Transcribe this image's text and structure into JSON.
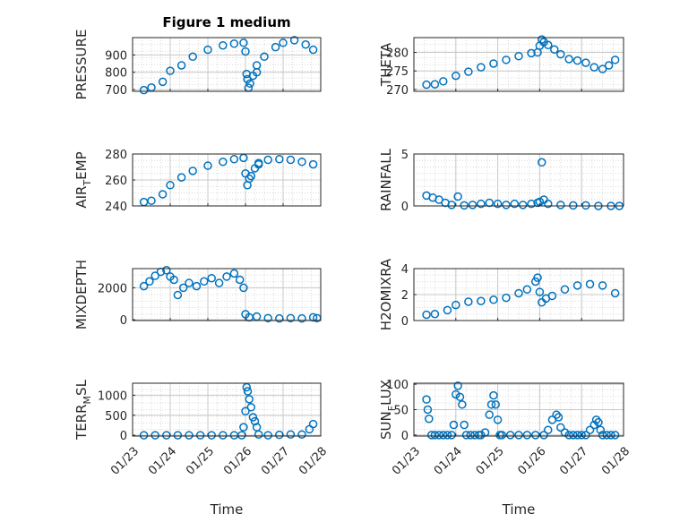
{
  "chart_data": [
    {
      "type": "scatter",
      "id": "pressure",
      "title": "Figure 1 medium",
      "ylabel": "PRESSURE",
      "ylabel_sub": "",
      "ylabel_tail": "",
      "ylim": [
        690,
        1000
      ],
      "yticks": [
        700,
        800,
        900
      ],
      "ytick_labels": [
        "700",
        "800",
        "900"
      ],
      "xlim": [
        0,
        5
      ],
      "xlabel": "",
      "xtick_labels": [],
      "segments": [
        {
          "x": [
            0.3,
            0.5,
            0.8,
            1.0,
            1.3,
            1.6,
            2.0,
            2.4,
            2.7,
            2.95
          ],
          "y": [
            697,
            712,
            745,
            808,
            840,
            890,
            930,
            955,
            965,
            970
          ]
        },
        {
          "x": [
            3.0,
            3.03,
            3.05,
            3.08,
            3.12,
            3.2,
            3.3
          ],
          "y": [
            920,
            790,
            760,
            710,
            735,
            780,
            800
          ]
        },
        {
          "x": [
            3.3,
            3.5,
            3.8,
            4.0,
            4.3,
            4.6,
            4.8
          ],
          "y": [
            840,
            890,
            945,
            970,
            985,
            960,
            930
          ]
        }
      ]
    },
    {
      "type": "scatter",
      "id": "theta",
      "title": "",
      "ylabel": "THETA",
      "ylabel_sub": "",
      "ylabel_tail": "",
      "ylim": [
        269.5,
        284
      ],
      "yticks": [
        270,
        275,
        280
      ],
      "ytick_labels": [
        "270",
        "275",
        "280"
      ],
      "xlim": [
        0,
        5
      ],
      "xlabel": "",
      "xtick_labels": [],
      "segments": [
        {
          "x": [
            0.3,
            0.5,
            0.7,
            1.0,
            1.3,
            1.6,
            1.9,
            2.2,
            2.5,
            2.8,
            2.95
          ],
          "y": [
            271.3,
            271.4,
            272.2,
            273.7,
            274.8,
            276.0,
            277.0,
            278.0,
            279.0,
            279.8,
            280.0
          ]
        },
        {
          "x": [
            3.0,
            3.05,
            3.1,
            3.2,
            3.35,
            3.5,
            3.7,
            3.9,
            4.1,
            4.3,
            4.5,
            4.65,
            4.8
          ],
          "y": [
            281.8,
            283.5,
            282.8,
            282.0,
            280.8,
            279.5,
            278.2,
            277.8,
            277.2,
            276.0,
            275.5,
            276.5,
            278.0
          ]
        }
      ]
    },
    {
      "type": "scatter",
      "id": "air-temp",
      "title": "",
      "ylabel": "AIR",
      "ylabel_sub": "T",
      "ylabel_tail": "EMP",
      "ylim": [
        240,
        280
      ],
      "yticks": [
        240,
        260,
        280
      ],
      "ytick_labels": [
        "240",
        "260",
        "280"
      ],
      "xlim": [
        0,
        5
      ],
      "xlabel": "",
      "xtick_labels": [],
      "segments": [
        {
          "x": [
            0.3,
            0.5,
            0.8,
            1.0,
            1.3,
            1.6,
            2.0,
            2.4,
            2.7,
            2.95
          ],
          "y": [
            243,
            244,
            249,
            256,
            262,
            267,
            271,
            274,
            276,
            277
          ]
        },
        {
          "x": [
            3.0,
            3.05,
            3.1,
            3.15,
            3.25,
            3.35
          ],
          "y": [
            265,
            256,
            261,
            263,
            269,
            272
          ]
        },
        {
          "x": [
            3.35,
            3.6,
            3.9,
            4.2,
            4.5,
            4.8
          ],
          "y": [
            273,
            275.5,
            276,
            275.5,
            274,
            272
          ]
        }
      ]
    },
    {
      "type": "scatter",
      "id": "rainfall",
      "title": "",
      "ylabel": "RAINFALL",
      "ylabel_sub": "",
      "ylabel_tail": "",
      "ylim": [
        0,
        5
      ],
      "yticks": [
        0,
        5
      ],
      "ytick_labels": [
        "0",
        "5"
      ],
      "xlim": [
        0,
        5
      ],
      "xlabel": "",
      "xtick_labels": [],
      "segments": [
        {
          "x": [
            0.3,
            0.45,
            0.6,
            0.75,
            0.9,
            1.05,
            1.2,
            1.4,
            1.6,
            1.8,
            2.0,
            2.2,
            2.4,
            2.6,
            2.8,
            2.95
          ],
          "y": [
            1.0,
            0.8,
            0.6,
            0.3,
            0.1,
            0.9,
            0.05,
            0.1,
            0.2,
            0.3,
            0.2,
            0.1,
            0.2,
            0.1,
            0.2,
            0.3
          ]
        },
        {
          "x": [
            3.0,
            3.05,
            3.1
          ],
          "y": [
            0.4,
            4.2,
            0.6
          ]
        },
        {
          "x": [
            3.2,
            3.5,
            3.8,
            4.1,
            4.4,
            4.7,
            4.9
          ],
          "y": [
            0.2,
            0.1,
            0.05,
            0.05,
            0.0,
            0.0,
            0.0
          ]
        }
      ]
    },
    {
      "type": "scatter",
      "id": "mixdepth",
      "title": "",
      "ylabel": "MIXDEPTH",
      "ylabel_sub": "",
      "ylabel_tail": "",
      "ylim": [
        -50,
        3200
      ],
      "yticks": [
        0,
        2000
      ],
      "ytick_labels": [
        "0",
        "2000"
      ],
      "xlim": [
        0,
        5
      ],
      "xlabel": "",
      "xtick_labels": [],
      "segments": [
        {
          "x": [
            0.3,
            0.45,
            0.6,
            0.75,
            0.9,
            1.0,
            1.1,
            1.2,
            1.35,
            1.5,
            1.7,
            1.9,
            2.1,
            2.3,
            2.5,
            2.7,
            2.85,
            2.95
          ],
          "y": [
            2100,
            2400,
            2750,
            3000,
            3100,
            2700,
            2500,
            1550,
            2000,
            2300,
            2100,
            2400,
            2600,
            2300,
            2700,
            2900,
            2500,
            2000
          ]
        },
        {
          "x": [
            3.0,
            3.1,
            3.3,
            3.6,
            3.9,
            4.2,
            4.5,
            4.8,
            4.9
          ],
          "y": [
            350,
            150,
            200,
            100,
            80,
            100,
            80,
            150,
            100
          ]
        }
      ]
    },
    {
      "type": "scatter",
      "id": "h2omixra",
      "title": "",
      "ylabel": "H2OMIXRA",
      "ylabel_sub": "",
      "ylabel_tail": "",
      "ylim": [
        0,
        4
      ],
      "yticks": [
        0,
        2,
        4
      ],
      "ytick_labels": [
        "0",
        "2",
        "4"
      ],
      "xlim": [
        0,
        5
      ],
      "xlabel": "",
      "xtick_labels": [],
      "segments": [
        {
          "x": [
            0.3,
            0.5,
            0.8,
            1.0,
            1.3,
            1.6,
            1.9,
            2.2,
            2.5,
            2.7,
            2.9,
            2.95
          ],
          "y": [
            0.45,
            0.5,
            0.8,
            1.2,
            1.45,
            1.5,
            1.6,
            1.75,
            2.1,
            2.4,
            3.0,
            3.3
          ]
        },
        {
          "x": [
            3.0,
            3.05,
            3.15
          ],
          "y": [
            2.2,
            1.4,
            1.7
          ]
        },
        {
          "x": [
            3.3,
            3.6,
            3.9,
            4.2,
            4.5,
            4.8
          ],
          "y": [
            1.9,
            2.4,
            2.7,
            2.8,
            2.7,
            2.1
          ]
        }
      ]
    },
    {
      "type": "scatter",
      "id": "terr-msl",
      "title": "",
      "ylabel": "TERR",
      "ylabel_sub": "M",
      "ylabel_tail": "SL",
      "ylim": [
        -20,
        1300
      ],
      "yticks": [
        0,
        500,
        1000
      ],
      "ytick_labels": [
        "0",
        "500",
        "1000"
      ],
      "xlim": [
        0,
        5
      ],
      "xlabel": "Time",
      "xticks": [
        0,
        1,
        2,
        3,
        4,
        5
      ],
      "xtick_labels": [
        "01/23",
        "01/24",
        "01/25",
        "01/26",
        "01/27",
        "01/28"
      ],
      "segments": [
        {
          "x": [
            0.3,
            0.6,
            0.9,
            1.2,
            1.5,
            1.8,
            2.1,
            2.4,
            2.7,
            2.9
          ],
          "y": [
            0,
            0,
            0,
            0,
            0,
            0,
            0,
            0,
            0,
            0
          ]
        },
        {
          "x": [
            2.95,
            3.0,
            3.03,
            3.06,
            3.1,
            3.15,
            3.2,
            3.25,
            3.3
          ],
          "y": [
            200,
            600,
            1200,
            1100,
            900,
            700,
            450,
            350,
            200
          ]
        },
        {
          "x": [
            3.35,
            3.6,
            3.9,
            4.2,
            4.5,
            4.7,
            4.8
          ],
          "y": [
            20,
            0,
            10,
            20,
            20,
            150,
            280
          ]
        }
      ]
    },
    {
      "type": "scatter",
      "id": "sun-flux",
      "title": "",
      "ylabel": "SUN",
      "ylabel_sub": "F",
      "ylabel_tail": "LUX",
      "ylim": [
        -2,
        102
      ],
      "yticks": [
        0,
        50,
        100
      ],
      "ytick_labels": [
        "0",
        "50",
        "100"
      ],
      "xlim": [
        0,
        5
      ],
      "xlabel": "Time",
      "xticks": [
        0,
        1,
        2,
        3,
        4,
        5
      ],
      "xtick_labels": [
        "01/23",
        "01/24",
        "01/25",
        "01/26",
        "01/27",
        "01/28"
      ],
      "segments": [
        {
          "x": [
            0.3,
            0.33,
            0.36,
            0.42,
            0.5,
            0.6,
            0.7,
            0.8,
            0.9,
            0.95,
            1.0,
            1.05,
            1.1,
            1.15,
            1.2,
            1.25
          ],
          "y": [
            70,
            50,
            32,
            0,
            0,
            0,
            0,
            0,
            0,
            20,
            80,
            97,
            75,
            60,
            20,
            0
          ]
        },
        {
          "x": [
            1.35,
            1.45,
            1.55,
            1.6,
            1.7,
            1.8,
            1.85,
            1.9,
            1.95,
            2.0,
            2.05
          ],
          "y": [
            0,
            0,
            0,
            0,
            5,
            40,
            60,
            78,
            60,
            30,
            0
          ]
        },
        {
          "x": [
            2.1,
            2.3,
            2.5,
            2.7,
            2.9,
            3.1,
            3.2,
            3.3,
            3.4,
            3.45,
            3.5,
            3.6,
            3.7
          ],
          "y": [
            0,
            0,
            0,
            0,
            0,
            0,
            10,
            30,
            40,
            35,
            15,
            5,
            0
          ]
        },
        {
          "x": [
            3.8,
            3.9,
            4.0,
            4.1,
            4.2,
            4.3,
            4.35,
            4.4,
            4.45,
            4.5,
            4.6,
            4.7,
            4.8
          ],
          "y": [
            0,
            0,
            0,
            0,
            10,
            20,
            30,
            25,
            10,
            0,
            0,
            0,
            0
          ]
        }
      ]
    }
  ]
}
